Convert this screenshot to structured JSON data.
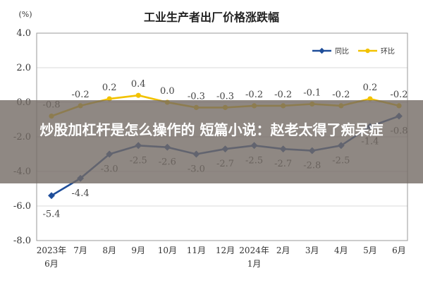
{
  "overlay": {
    "headline": "炒股加杠杆是怎么操作的 短篇小说：赵老太得了痴呆症"
  },
  "chart_data": {
    "type": "line",
    "title": "工业生产者出厂价格涨跌幅",
    "ylabel": "(%)",
    "ylim": [
      -8.0,
      4.0
    ],
    "yticks": [
      "4.0",
      "2.0",
      "0.0",
      "-2.0",
      "-4.0",
      "-6.0",
      "-8.0"
    ],
    "categories": [
      [
        "2023年",
        "6月"
      ],
      [
        "7月"
      ],
      [
        "8月"
      ],
      [
        "9月"
      ],
      [
        "10月"
      ],
      [
        "11月"
      ],
      [
        "12月"
      ],
      [
        "2024年",
        "1月"
      ],
      [
        "2月"
      ],
      [
        "3月"
      ],
      [
        "4月"
      ],
      [
        "5月"
      ],
      [
        "6月"
      ]
    ],
    "grid": true,
    "legend_position": "top-right",
    "series": [
      {
        "name": "同比",
        "color": "#1f4e9a",
        "values": [
          -5.4,
          -4.4,
          -3.0,
          -2.5,
          -2.6,
          -3.0,
          -2.7,
          -2.5,
          -2.7,
          -2.8,
          -2.5,
          -1.4,
          -0.8
        ],
        "labels": [
          "-5.4",
          "-4.4",
          "-3.0",
          "-2.5",
          "-2.6",
          "-3.0",
          "-2.7",
          "-2.5",
          "-2.7",
          "-2.8",
          "-2.5",
          "-1.4",
          "-0.8"
        ]
      },
      {
        "name": "环比",
        "color": "#f2c200",
        "values": [
          -0.8,
          -0.2,
          0.2,
          0.4,
          0.0,
          -0.3,
          -0.3,
          -0.2,
          -0.2,
          -0.1,
          -0.2,
          0.2,
          -0.2
        ],
        "labels": [
          "-0.8",
          "-0.2",
          "0.2",
          "0.4",
          "0.0",
          "-0.3",
          "-0.3",
          "-0.2",
          "-0.2",
          "-0.1",
          "-0.2",
          "0.2",
          "-0.2"
        ]
      }
    ]
  }
}
